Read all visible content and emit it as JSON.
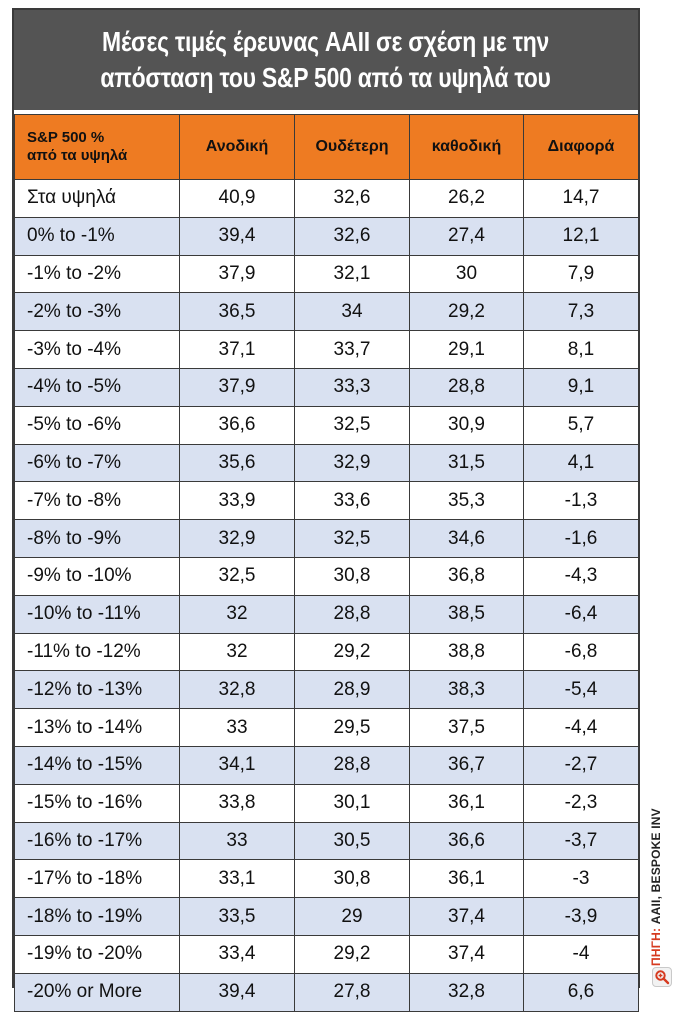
{
  "title_line1": "Μέσες τιμές έρευνας AAII σε σχέση με την",
  "title_line2": "απόσταση του S&P 500 από τα υψηλά του",
  "source_prefix": "ΠΗΓΗ:",
  "source_text": "AAII, BESPOKE INV",
  "chart_data": {
    "type": "table",
    "columns": [
      "S&P 500 %\nαπό τα υψηλά",
      "Ανοδική",
      "Ουδέτερη",
      "καθοδική",
      "Διαφορά"
    ],
    "header_line1": "S&P 500 %",
    "header_line2": "από τα υψηλά",
    "rows": [
      [
        "Στα υψηλά",
        "40,9",
        "32,6",
        "26,2",
        "14,7"
      ],
      [
        "0% to -1%",
        "39,4",
        "32,6",
        "27,4",
        "12,1"
      ],
      [
        "-1% to -2%",
        "37,9",
        "32,1",
        "30",
        "7,9"
      ],
      [
        "-2% to -3%",
        "36,5",
        "34",
        "29,2",
        "7,3"
      ],
      [
        "-3% to -4%",
        "37,1",
        "33,7",
        "29,1",
        "8,1"
      ],
      [
        "-4% to -5%",
        "37,9",
        "33,3",
        "28,8",
        "9,1"
      ],
      [
        "-5% to -6%",
        "36,6",
        "32,5",
        "30,9",
        "5,7"
      ],
      [
        "-6% to -7%",
        "35,6",
        "32,9",
        "31,5",
        "4,1"
      ],
      [
        "-7% to -8%",
        "33,9",
        "33,6",
        "35,3",
        "-1,3"
      ],
      [
        "-8% to -9%",
        "32,9",
        "32,5",
        "34,6",
        "-1,6"
      ],
      [
        "-9% to -10%",
        "32,5",
        "30,8",
        "36,8",
        "-4,3"
      ],
      [
        "-10% to -11%",
        "32",
        "28,8",
        "38,5",
        "-6,4"
      ],
      [
        "-11% to -12%",
        "32",
        "29,2",
        "38,8",
        "-6,8"
      ],
      [
        "-12% to -13%",
        "32,8",
        "28,9",
        "38,3",
        "-5,4"
      ],
      [
        "-13% to -14%",
        "33",
        "29,5",
        "37,5",
        "-4,4"
      ],
      [
        "-14% to -15%",
        "34,1",
        "28,8",
        "36,7",
        "-2,7"
      ],
      [
        "-15% to -16%",
        "33,8",
        "30,1",
        "36,1",
        "-2,3"
      ],
      [
        "-16% to -17%",
        "33",
        "30,5",
        "36,6",
        "-3,7"
      ],
      [
        "-17% to -18%",
        "33,1",
        "30,8",
        "36,1",
        "-3"
      ],
      [
        "-18% to -19%",
        "33,5",
        "29",
        "37,4",
        "-3,9"
      ],
      [
        "-19% to -20%",
        "33,4",
        "29,2",
        "37,4",
        "-4"
      ],
      [
        "-20% or More",
        "39,4",
        "27,8",
        "32,8",
        "6,6"
      ]
    ]
  },
  "colors": {
    "title_bg": "#545454",
    "header_bg": "#ee7b22",
    "stripe": "#d9e1f1",
    "border": "#3a3a3a"
  }
}
